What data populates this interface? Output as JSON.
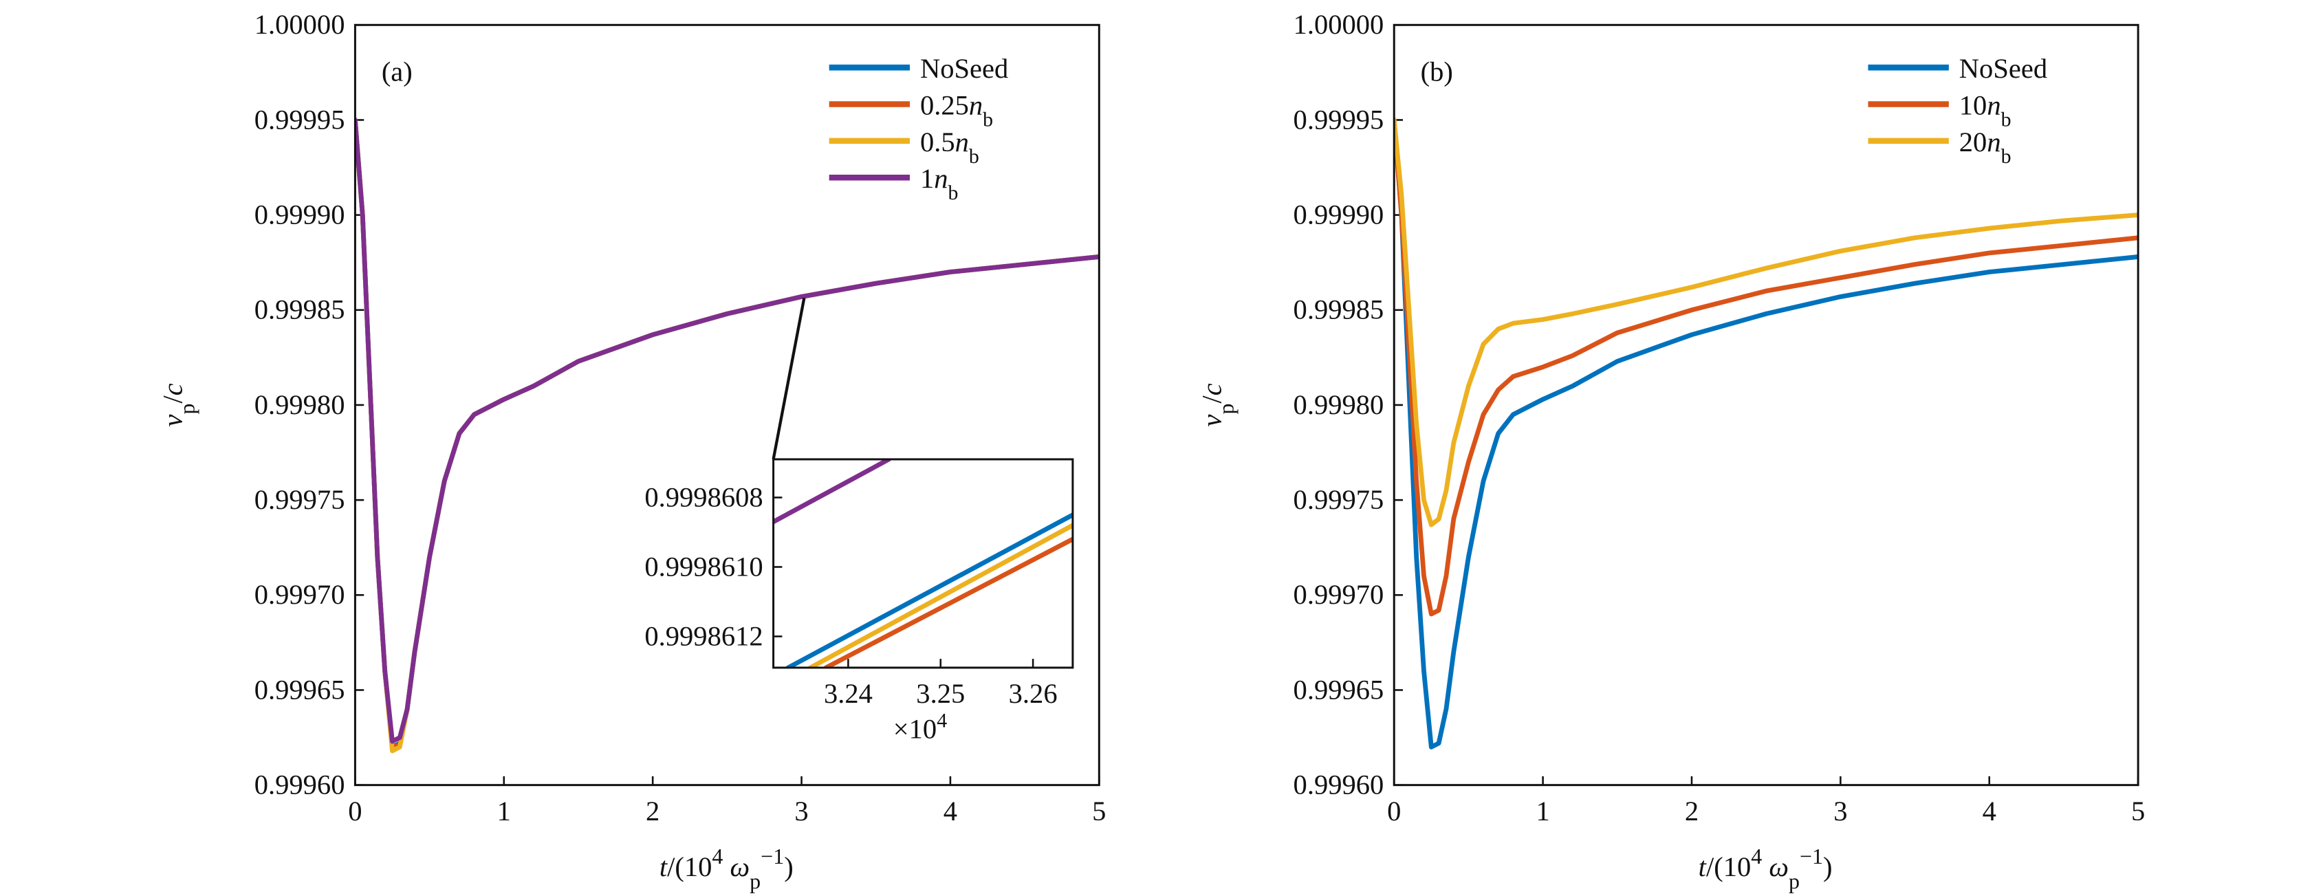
{
  "chart_data": [
    {
      "type": "line",
      "panel_label": "(a)",
      "x": [
        0,
        0.05,
        0.1,
        0.15,
        0.2,
        0.25,
        0.3,
        0.35,
        0.4,
        0.5,
        0.6,
        0.7,
        0.8,
        1.0,
        1.2,
        1.5,
        2,
        2.5,
        3,
        3.5,
        4,
        4.5,
        5
      ],
      "series": [
        {
          "name": "NoSeed",
          "color": "#0072BD",
          "values": [
            0.99995,
            0.9999,
            0.99981,
            0.99972,
            0.99966,
            0.99962,
            0.999622,
            0.99964,
            0.99967,
            0.99972,
            0.99976,
            0.999785,
            0.999795,
            0.999803,
            0.99981,
            0.999823,
            0.999837,
            0.999848,
            0.999857,
            0.999864,
            0.99987,
            0.999874,
            0.999878
          ]
        },
        {
          "name": "0.25nb",
          "color": "#D95319",
          "values": [
            0.99995,
            0.9999,
            0.99981,
            0.99972,
            0.99966,
            0.99962,
            0.999621,
            0.99964,
            0.99967,
            0.99972,
            0.99976,
            0.999785,
            0.999795,
            0.999803,
            0.99981,
            0.999823,
            0.999837,
            0.999848,
            0.999857,
            0.999864,
            0.99987,
            0.999874,
            0.999878
          ]
        },
        {
          "name": "0.5nb",
          "color": "#EDB120",
          "values": [
            0.99995,
            0.9999,
            0.99981,
            0.99972,
            0.99966,
            0.999618,
            0.99962,
            0.99964,
            0.99967,
            0.99972,
            0.99976,
            0.999785,
            0.999795,
            0.999803,
            0.99981,
            0.999823,
            0.999837,
            0.999848,
            0.999857,
            0.999864,
            0.99987,
            0.999874,
            0.999878
          ]
        },
        {
          "name": "1nb",
          "color": "#7E2F8E",
          "values": [
            0.99995,
            0.9999,
            0.99981,
            0.99972,
            0.99966,
            0.999623,
            0.999625,
            0.99964,
            0.99967,
            0.99972,
            0.99976,
            0.999785,
            0.999795,
            0.999803,
            0.99981,
            0.999823,
            0.999837,
            0.999848,
            0.999857,
            0.999864,
            0.99987,
            0.999874,
            0.999878
          ]
        }
      ],
      "xlim": [
        0,
        5
      ],
      "ylim": [
        0.9996,
        1
      ],
      "xticks": [
        0,
        1,
        2,
        3,
        4,
        5
      ],
      "yticks": [
        {
          "value": 0.9996,
          "label": "0.99960"
        },
        0.99965,
        {
          "value": 0.9997,
          "label": "0.99970"
        },
        0.99975,
        {
          "value": 0.9998,
          "label": "0.99980"
        },
        0.99985,
        {
          "value": 0.9999,
          "label": "0.99990"
        },
        0.99995,
        {
          "value": 1,
          "label": "1.00000"
        }
      ],
      "xlabel": [
        "t",
        "/(10",
        "4",
        " ω",
        "p",
        "−1",
        ")"
      ],
      "ylabel": [
        "v",
        "p",
        "/",
        "c"
      ],
      "legend": "upper right"
    },
    {
      "type": "line",
      "series": [
        {
          "color": "#0072BD",
          "x": [
            3.2335,
            3.2643
          ],
          "values": [
            0.99986129,
            0.99986085
          ]
        },
        {
          "color": "#D95319",
          "x": [
            3.2376,
            3.2643
          ],
          "values": [
            0.99986129,
            0.99986092
          ]
        },
        {
          "color": "#EDB120",
          "x": [
            3.2359,
            3.2643
          ],
          "values": [
            0.99986129,
            0.99986088
          ]
        },
        {
          "color": "#7E2F8E",
          "x": [
            3.2319,
            3.2444
          ],
          "values": [
            0.99986087,
            0.99986069
          ]
        }
      ],
      "xlim": [
        3.2319,
        3.2643
      ],
      "ylim": [
        0.99986129,
        0.99986069
      ],
      "xticks": [
        3.24,
        3.25,
        3.26
      ],
      "yticks": [
        0.9998608,
        {
          "value": 0.999861,
          "label": "0.9998610"
        },
        0.9998612
      ],
      "x_multiplier": [
        "×10",
        "4"
      ]
    },
    {
      "type": "line",
      "panel_label": "(b)",
      "x": [
        0,
        0.05,
        0.1,
        0.15,
        0.2,
        0.25,
        0.3,
        0.35,
        0.4,
        0.5,
        0.6,
        0.7,
        0.8,
        1.0,
        1.2,
        1.5,
        2,
        2.5,
        3,
        3.5,
        4,
        4.5,
        5
      ],
      "series": [
        {
          "name": "NoSeed",
          "color": "#0072BD",
          "values": [
            0.99995,
            0.9999,
            0.99981,
            0.99972,
            0.99966,
            0.99962,
            0.999622,
            0.99964,
            0.99967,
            0.99972,
            0.99976,
            0.999785,
            0.999795,
            0.999803,
            0.99981,
            0.999823,
            0.999837,
            0.999848,
            0.999857,
            0.999864,
            0.99987,
            0.999874,
            0.999878
          ]
        },
        {
          "name": "10nb",
          "color": "#D95319",
          "values": [
            0.99995,
            0.9999,
            0.99983,
            0.99976,
            0.99971,
            0.99969,
            0.999692,
            0.99971,
            0.99974,
            0.99977,
            0.999795,
            0.999808,
            0.999815,
            0.99982,
            0.999826,
            0.999838,
            0.99985,
            0.99986,
            0.999867,
            0.999874,
            0.99988,
            0.999884,
            0.999888
          ]
        },
        {
          "name": "20nb",
          "color": "#EDB120",
          "values": [
            0.99995,
            0.99991,
            0.99985,
            0.99979,
            0.99975,
            0.999737,
            0.99974,
            0.999755,
            0.99978,
            0.99981,
            0.999832,
            0.99984,
            0.999843,
            0.999845,
            0.999848,
            0.999853,
            0.999862,
            0.999872,
            0.999881,
            0.999888,
            0.999893,
            0.999897,
            0.9999
          ]
        }
      ],
      "xlim": [
        0,
        5
      ],
      "ylim": [
        0.9996,
        1
      ],
      "xticks": [
        0,
        1,
        2,
        3,
        4,
        5
      ],
      "yticks": [
        {
          "value": 0.9996,
          "label": "0.99960"
        },
        0.99965,
        {
          "value": 0.9997,
          "label": "0.99970"
        },
        0.99975,
        {
          "value": 0.9998,
          "label": "0.99980"
        },
        0.99985,
        {
          "value": 0.9999,
          "label": "0.99990"
        },
        0.99995,
        {
          "value": 1,
          "label": "1.00000"
        }
      ],
      "xlabel": [
        "t",
        "/(10",
        "4",
        " ω",
        "p",
        "−1",
        ")"
      ],
      "ylabel": [
        "v",
        "p",
        "/",
        "c"
      ],
      "legend": "upper right"
    }
  ]
}
